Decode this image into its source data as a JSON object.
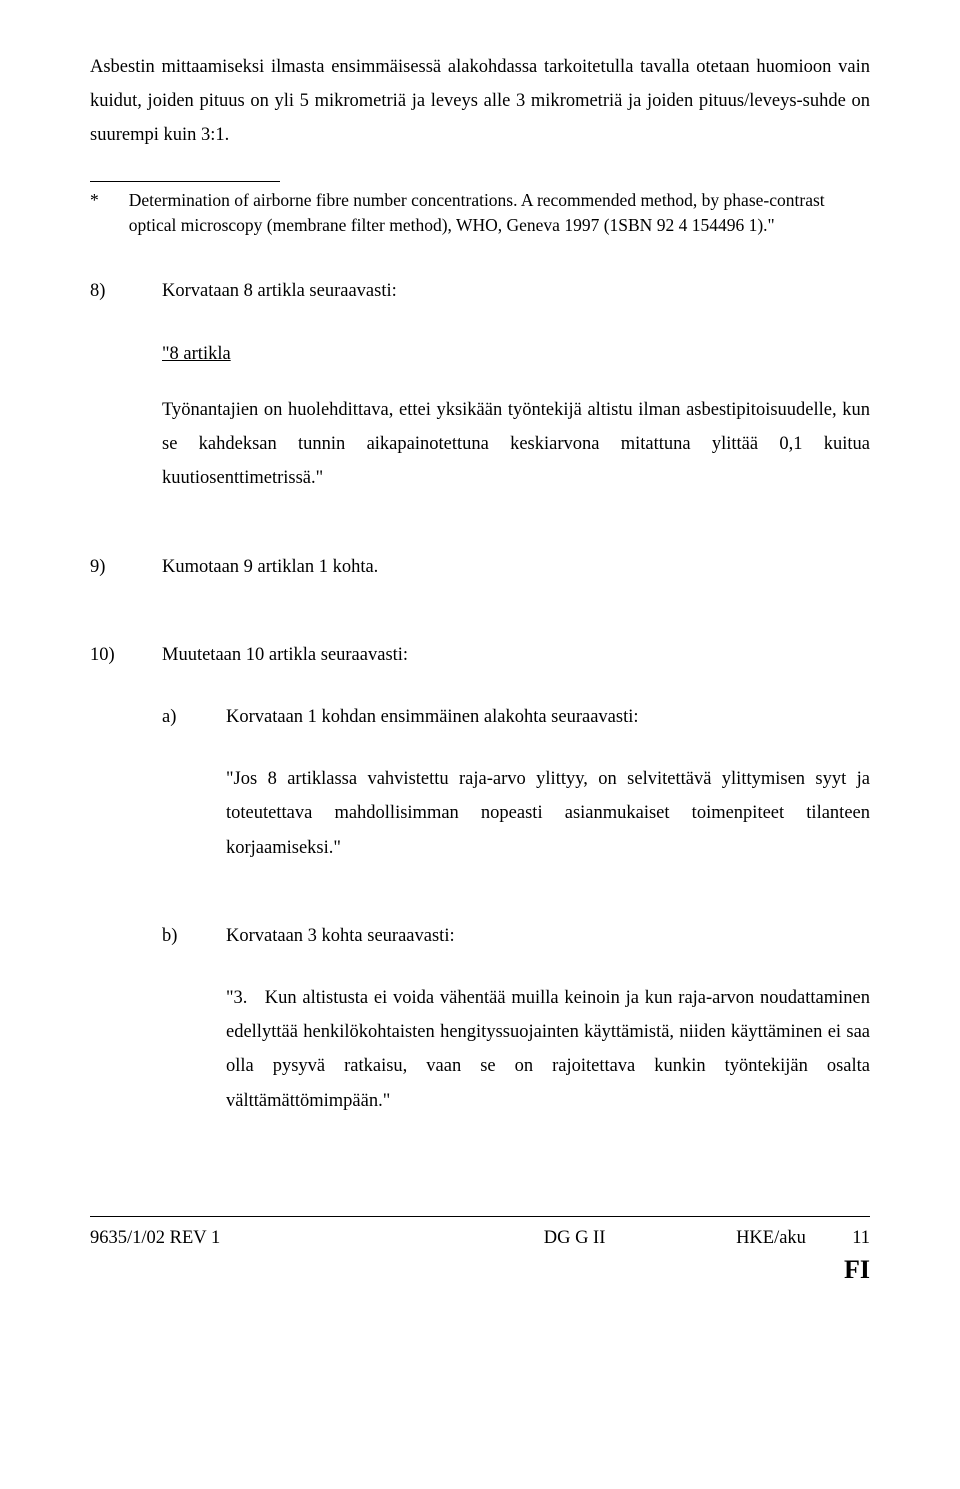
{
  "intro_para": "Asbestin mittaamiseksi ilmasta ensimmäisessä alakohdassa tarkoitetulla tavalla otetaan huomioon vain kuidut, joiden pituus on yli 5 mikrometriä ja leveys alle 3 mikrometriä ja joiden pituus/leveys-suhde on suurempi kuin 3:1.",
  "footnote": {
    "marker": "*",
    "text": "Determination of airborne fibre number concentrations. A recommended method, by phase-contrast optical microscopy (membrane filter method), WHO, Geneva 1997 (1SBN 92 4 154496 1).\""
  },
  "item8": {
    "num": "8)",
    "lead": "Korvataan 8 artikla seuraavasti:",
    "heading": "\"8 artikla",
    "body": "Työnantajien on huolehdittava, ettei yksikään työntekijä altistu ilman asbestipitoisuudelle, kun se kahdeksan tunnin aikapainotettuna keskiarvona mitattuna ylittää 0,1 kuitua kuutiosenttimetrissä.\""
  },
  "item9": {
    "num": "9)",
    "text": "Kumotaan 9 artiklan 1 kohta."
  },
  "item10": {
    "num": "10)",
    "lead": "Muutetaan 10 artikla seuraavasti:",
    "a": {
      "label": "a)",
      "lead": "Korvataan 1 kohdan ensimmäinen alakohta seuraavasti:",
      "body": "\"Jos 8 artiklassa vahvistettu raja-arvo ylittyy, on selvitettävä ylittymisen syyt ja toteutettava mahdollisimman nopeasti asianmukaiset toimenpiteet tilanteen korjaamiseksi.\""
    },
    "b": {
      "label": "b)",
      "lead": "Korvataan 3 kohta seuraavasti:",
      "body_prefix": "\"3.",
      "body": "Kun altistusta ei voida vähentää muilla keinoin ja kun raja-arvon noudattaminen edellyttää henkilökohtaisten hengityssuojainten käyttämistä, niiden käyttäminen ei saa olla pysyvä ratkaisu, vaan se on rajoitettava kunkin työntekijän osalta välttämättömimpään.\""
    }
  },
  "footer": {
    "left": "9635/1/02 REV 1",
    "center_line1": "",
    "center_line2": "DG G II",
    "right_top": "HKE/aku",
    "page_num": "11",
    "lang": "FI"
  }
}
